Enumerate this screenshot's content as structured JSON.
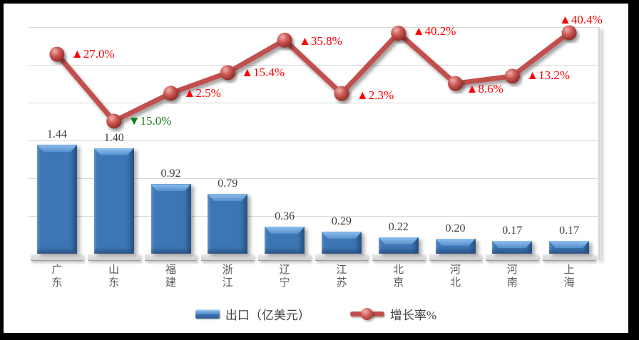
{
  "chart_data": {
    "type": "bar",
    "subtype": "bar-line-combo",
    "categories": [
      "广东",
      "山东",
      "福建",
      "浙江",
      "辽宁",
      "江苏",
      "北京",
      "河北",
      "河南",
      "上海"
    ],
    "series": [
      {
        "name": "出口（亿美元）",
        "type": "bar",
        "axis": "primary",
        "values": [
          1.44,
          1.4,
          0.92,
          0.79,
          0.36,
          0.29,
          0.22,
          0.2,
          0.17,
          0.17
        ],
        "labels": [
          "1.44",
          "1.40",
          "0.92",
          "0.79",
          "0.36",
          "0.29",
          "0.22",
          "0.20",
          "0.17",
          "0.17"
        ]
      },
      {
        "name": "增长率%",
        "type": "line",
        "axis": "secondary",
        "values": [
          27.0,
          -15.0,
          2.5,
          15.4,
          35.8,
          2.3,
          40.2,
          8.6,
          13.2,
          40.4
        ],
        "labels": [
          "▲27.0%",
          "▼15.0%",
          "▲2.5%",
          "▲15.4%",
          "▲35.8%",
          "▲2.3%",
          "▲40.2%",
          "▲8.6%",
          "▲13.2%",
          "▲40.4%"
        ]
      }
    ],
    "primary_axis": {
      "min": 0,
      "max": 3.0,
      "step": 0.5,
      "tick_labels_visible": false,
      "grid": true
    },
    "secondary_axis": {
      "tick_labels_visible": false
    },
    "legend": {
      "position": "bottom",
      "entries": [
        "出口（亿美元）",
        "增长率%"
      ]
    },
    "title": "",
    "colors": {
      "bar_fill": "#3d76b5",
      "bar_bevel_light": "#8fc0ef",
      "bar_bevel_dark": "#2b5c95",
      "line": "#c0504d",
      "marker_highlight": "#f2b0ac",
      "marker_shadow": "#8f2723",
      "growth_label_up": "#ff0000",
      "growth_label_down": "#167c16",
      "bar_value_label": "#3f3f3f",
      "category_label": "#595959",
      "gridline": "#d9d9d9",
      "frame": "#000000"
    }
  }
}
